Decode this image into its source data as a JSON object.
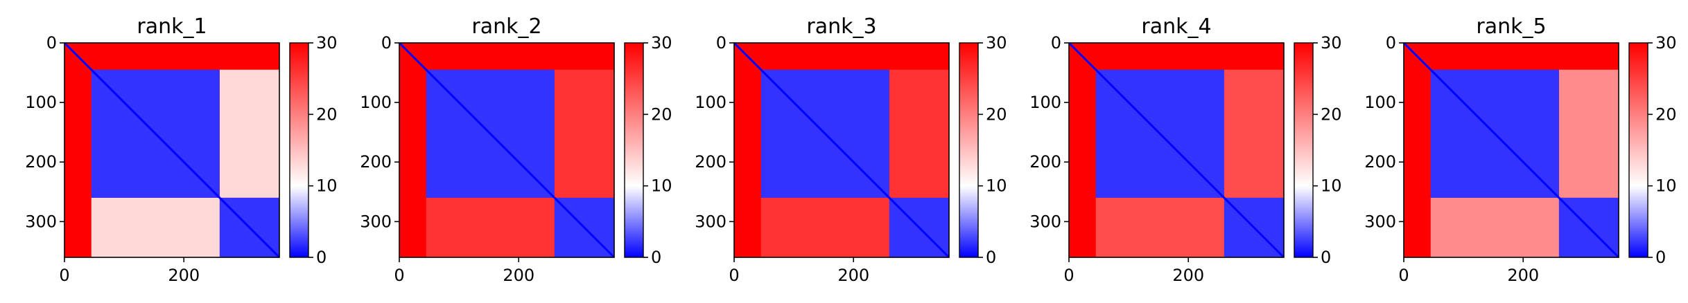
{
  "chart_data": [
    {
      "type": "heatmap",
      "title": "rank_1",
      "size": 360,
      "domain_end": 45,
      "boundary": 260,
      "inter_domain_value": 13,
      "xticks": [
        0,
        200
      ],
      "yticks": [
        0,
        100,
        200,
        300
      ],
      "colorbar": {
        "min": 0,
        "max": 30,
        "ticks": [
          0,
          10,
          20,
          30
        ],
        "colors": [
          "#0000ff",
          "#ffffff",
          "#ff0000"
        ]
      }
    },
    {
      "type": "heatmap",
      "title": "rank_2",
      "size": 360,
      "domain_end": 45,
      "boundary": 260,
      "inter_domain_value": 26,
      "xticks": [
        0,
        200
      ],
      "yticks": [
        0,
        100,
        200,
        300
      ],
      "colorbar": {
        "min": 0,
        "max": 30,
        "ticks": [
          0,
          10,
          20,
          30
        ],
        "colors": [
          "#0000ff",
          "#ffffff",
          "#ff0000"
        ]
      }
    },
    {
      "type": "heatmap",
      "title": "rank_3",
      "size": 360,
      "domain_end": 45,
      "boundary": 260,
      "inter_domain_value": 26,
      "xticks": [
        0,
        200
      ],
      "yticks": [
        0,
        100,
        200,
        300
      ],
      "colorbar": {
        "min": 0,
        "max": 30,
        "ticks": [
          0,
          10,
          20,
          30
        ],
        "colors": [
          "#0000ff",
          "#ffffff",
          "#ff0000"
        ]
      }
    },
    {
      "type": "heatmap",
      "title": "rank_4",
      "size": 360,
      "domain_end": 45,
      "boundary": 260,
      "inter_domain_value": 24,
      "xticks": [
        0,
        200
      ],
      "yticks": [
        0,
        100,
        200,
        300
      ],
      "colorbar": {
        "min": 0,
        "max": 30,
        "ticks": [
          0,
          10,
          20,
          30
        ],
        "colors": [
          "#0000ff",
          "#ffffff",
          "#ff0000"
        ]
      }
    },
    {
      "type": "heatmap",
      "title": "rank_5",
      "size": 360,
      "domain_end": 45,
      "boundary": 260,
      "inter_domain_value": 19,
      "xticks": [
        0,
        200
      ],
      "yticks": [
        0,
        100,
        200,
        300
      ],
      "colorbar": {
        "min": 0,
        "max": 30,
        "ticks": [
          0,
          10,
          20,
          30
        ],
        "colors": [
          "#0000ff",
          "#ffffff",
          "#ff0000"
        ]
      }
    }
  ]
}
